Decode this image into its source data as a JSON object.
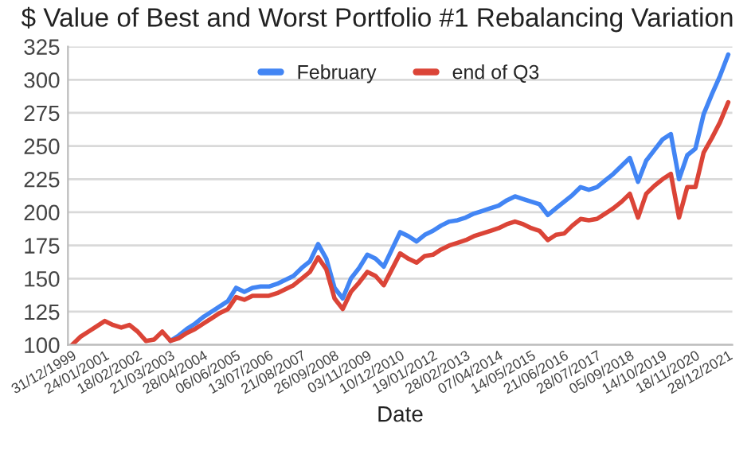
{
  "chart_data": {
    "type": "line",
    "title": "$ Value of Best and Worst Portfolio #1 Rebalancing Variation",
    "xlabel": "Date",
    "categories": [
      "31/12/1999",
      null,
      null,
      null,
      "24/01/2001",
      null,
      null,
      null,
      "18/02/2002",
      null,
      null,
      null,
      "21/03/2003",
      null,
      null,
      null,
      "28/04/2004",
      null,
      null,
      null,
      "06/06/2005",
      null,
      null,
      null,
      "13/07/2006",
      null,
      null,
      null,
      "21/08/2007",
      null,
      null,
      null,
      "26/09/2008",
      null,
      null,
      null,
      "03/11/2009",
      null,
      null,
      null,
      "10/12/2010",
      null,
      null,
      null,
      "19/01/2012",
      null,
      null,
      null,
      "28/02/2013",
      null,
      null,
      null,
      "07/04/2014",
      null,
      null,
      null,
      "14/05/2015",
      null,
      null,
      null,
      "21/06/2016",
      null,
      null,
      null,
      "28/07/2017",
      null,
      null,
      null,
      "05/09/2018",
      null,
      null,
      null,
      "14/10/2019",
      null,
      null,
      null,
      "18/11/2020",
      null,
      null,
      null,
      "28/12/2021"
    ],
    "series": [
      {
        "name": "February",
        "color": "#4285f4",
        "values": [
          null,
          null,
          null,
          null,
          null,
          null,
          null,
          null,
          null,
          null,
          null,
          null,
          103,
          107,
          112,
          116,
          121,
          125,
          129,
          133,
          143,
          140,
          143,
          144,
          144,
          146,
          149,
          152,
          158,
          163,
          176,
          165,
          143,
          135,
          150,
          158,
          168,
          165,
          159,
          172,
          185,
          182,
          178,
          183,
          186,
          190,
          193,
          194,
          196,
          199,
          201,
          203,
          205,
          209,
          212,
          210,
          208,
          206,
          198,
          203,
          208,
          213,
          219,
          217,
          219,
          224,
          229,
          235,
          241,
          223,
          239,
          247,
          255,
          259,
          225,
          243,
          248,
          274,
          289,
          303,
          319
        ]
      },
      {
        "name": "end of Q3",
        "color": "#db4437",
        "values": [
          100,
          106,
          110,
          114,
          118,
          115,
          113,
          115,
          110,
          103,
          104,
          110,
          103,
          105,
          109,
          112,
          116,
          120,
          124,
          127,
          136,
          134,
          137,
          137,
          137,
          139,
          142,
          145,
          150,
          155,
          166,
          157,
          135,
          127,
          140,
          147,
          155,
          152,
          145,
          157,
          169,
          165,
          162,
          167,
          168,
          172,
          175,
          177,
          179,
          182,
          184,
          186,
          188,
          191,
          193,
          191,
          188,
          186,
          179,
          183,
          184,
          190,
          195,
          194,
          195,
          199,
          203,
          208,
          214,
          196,
          214,
          220,
          225,
          229,
          196,
          219,
          219,
          245,
          256,
          268,
          283
        ]
      }
    ],
    "ylim": [
      100,
      325
    ],
    "yticks": [
      100,
      125,
      150,
      175,
      200,
      225,
      250,
      275,
      300,
      325
    ],
    "grid": "y",
    "legend": "top"
  }
}
